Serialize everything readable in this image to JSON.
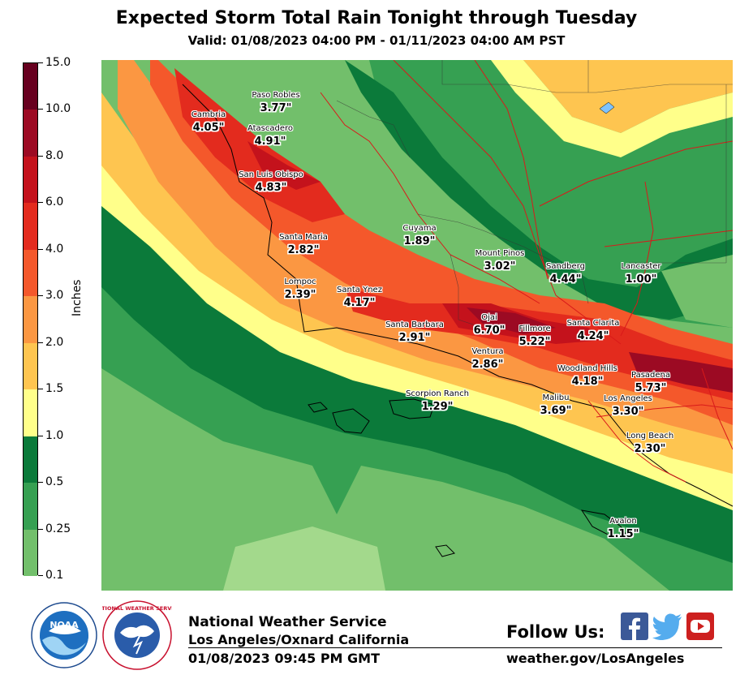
{
  "header": {
    "title": "Expected Storm Total Rain Tonight through Tuesday",
    "valid": "Valid: 01/08/2023 04:00 PM - 01/11/2023 04:00 AM PST"
  },
  "legend": {
    "units": "Inches",
    "levels": [
      {
        "label": "15.0",
        "color": "#67001f"
      },
      {
        "label": "10.0",
        "color": "#9c0a23"
      },
      {
        "label": "8.0",
        "color": "#c4121c"
      },
      {
        "label": "6.0",
        "color": "#e32b1e"
      },
      {
        "label": "4.0",
        "color": "#f4582b"
      },
      {
        "label": "3.0",
        "color": "#fb9742"
      },
      {
        "label": "2.0",
        "color": "#fec550"
      },
      {
        "label": "1.5",
        "color": "#ffff8a"
      },
      {
        "label": "1.0",
        "color": "#0b7a3a"
      },
      {
        "label": "0.5",
        "color": "#36a052"
      },
      {
        "label": "0.25",
        "color": "#72bf6b"
      },
      {
        "label": "0.1",
        "color": "#a3d98c"
      }
    ]
  },
  "cities": [
    {
      "name": "Paso Robles",
      "value": "3.77\""
    },
    {
      "name": "Cambria",
      "value": "4.05\""
    },
    {
      "name": "Atascadero",
      "value": "4.91\""
    },
    {
      "name": "San Luis Obispo",
      "value": "4.83\""
    },
    {
      "name": "Cuyama",
      "value": "1.89\""
    },
    {
      "name": "Santa Maria",
      "value": "2.82\""
    },
    {
      "name": "Mount Pinos",
      "value": "3.02\""
    },
    {
      "name": "Sandberg",
      "value": "4.44\""
    },
    {
      "name": "Lancaster",
      "value": "1.00\""
    },
    {
      "name": "Lompoc",
      "value": "2.39\""
    },
    {
      "name": "Santa Ynez",
      "value": "4.17\""
    },
    {
      "name": "Ojai",
      "value": "6.70\""
    },
    {
      "name": "Santa Barbara",
      "value": "2.91\""
    },
    {
      "name": "Fillmore",
      "value": "5.22\""
    },
    {
      "name": "Santa Clarita",
      "value": "4.24\""
    },
    {
      "name": "Ventura",
      "value": "2.86\""
    },
    {
      "name": "Woodland Hills",
      "value": "4.18\""
    },
    {
      "name": "Pasadena",
      "value": "5.73\""
    },
    {
      "name": "Scorpion Ranch",
      "value": "1.29\""
    },
    {
      "name": "Malibu",
      "value": "3.69\""
    },
    {
      "name": "Los Angeles",
      "value": "3.30\""
    },
    {
      "name": "Long Beach",
      "value": "2.30\""
    },
    {
      "name": "Avalon",
      "value": "1.15\""
    }
  ],
  "footer": {
    "agency": "National Weather Service",
    "office": "Los Angeles/Oxnard California",
    "issued": "01/08/2023 09:45 PM GMT",
    "follow": "Follow Us:",
    "url": "weather.gov/LosAngeles",
    "noaa_logo_text": "NOAA",
    "nws_logo_text": "NATIONAL WEATHER SERVICE",
    "facebook_color": "#3b5998",
    "twitter_color": "#55acee",
    "youtube_color": "#cd201f"
  }
}
